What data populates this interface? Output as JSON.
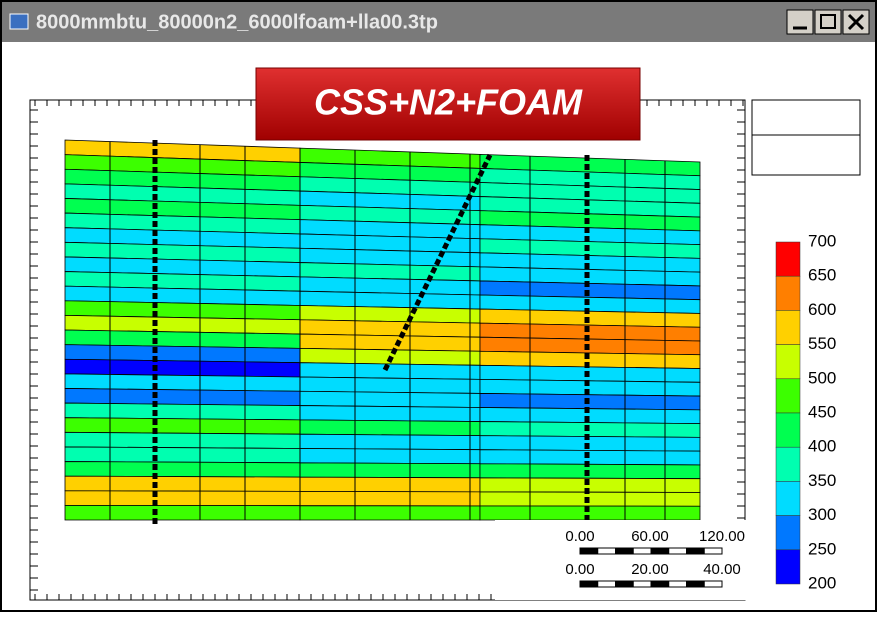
{
  "window": {
    "title": "8000mmbtu_80000n2_6000lfoam+lla00.3tp"
  },
  "banner": "CSS+N2+FOAM",
  "color_scale": {
    "labels": [
      "700",
      "650",
      "600",
      "550",
      "500",
      "450",
      "400",
      "350",
      "300",
      "250",
      "200"
    ],
    "colors": [
      "#ff0000",
      "#ff7f00",
      "#ffd000",
      "#c8ff00",
      "#3cff00",
      "#00ff50",
      "#00ffb0",
      "#00dcff",
      "#0078ff",
      "#0000ff"
    ]
  },
  "scale_bars": [
    {
      "labels": [
        "0.00",
        "60.00",
        "120.00"
      ]
    },
    {
      "labels": [
        "0.00",
        "20.00",
        "40.00"
      ]
    }
  ]
}
